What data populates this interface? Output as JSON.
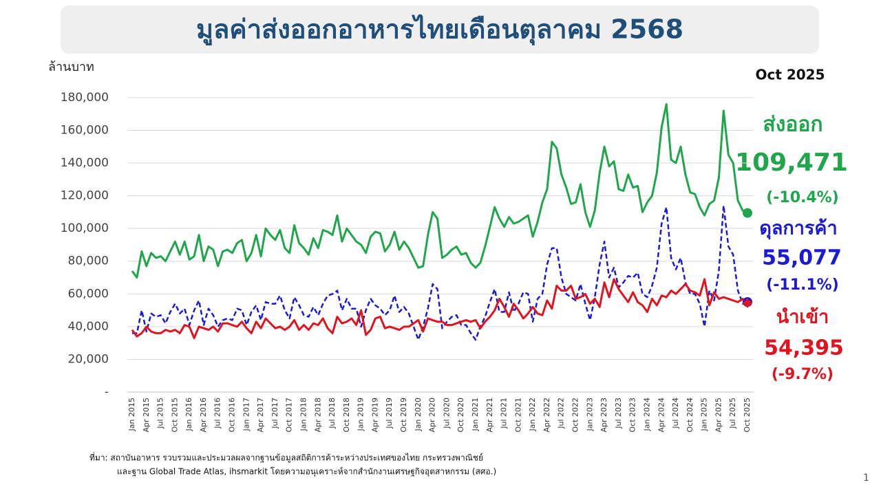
{
  "chart_data": {
    "type": "line",
    "title": "มูลค่าส่งออกอาหารไทยเดือนตุลาคม 2568",
    "y_unit": "ล้านบาท",
    "period_label": "Oct 2025",
    "source_line1": "ที่มา: สถาบันอาหาร รวบรวมและประมวลผลจากฐานข้อมูลสถิติการค้าระหว่างประเทศของไทย กระทรวงพาณิชย์",
    "source_line2": "และฐาน Global Trade Atlas, ihsmarkit โดยความอนุเคราะห์จากสำนักงานเศรษฐกิจอุตสาหกรรม (สศอ.)",
    "page_number": "1",
    "grid": true,
    "ylim": [
      0,
      185000
    ],
    "yticks": [
      {
        "value": 0,
        "label": "-"
      },
      {
        "value": 20000,
        "label": "20,000"
      },
      {
        "value": 40000,
        "label": "40,000"
      },
      {
        "value": 60000,
        "label": "60,000"
      },
      {
        "value": 80000,
        "label": "80,000"
      },
      {
        "value": 100000,
        "label": "100,000"
      },
      {
        "value": 120000,
        "label": "120,000"
      },
      {
        "value": 140000,
        "label": "140,000"
      },
      {
        "value": 160000,
        "label": "160,000"
      },
      {
        "value": 180000,
        "label": "180,000"
      }
    ],
    "categories": [
      "Jan 2015",
      null,
      null,
      "Apr 2015",
      null,
      null,
      "Jul 2015",
      null,
      null,
      "Oct 2015",
      null,
      null,
      "Jan 2016",
      null,
      null,
      "Apr 2016",
      null,
      null,
      "Jul 2016",
      null,
      null,
      "Oct 2016",
      null,
      null,
      "Jan 2017",
      null,
      null,
      "Apr 2017",
      null,
      null,
      "Jul 2017",
      null,
      null,
      "Oct 2017",
      null,
      null,
      "Jan 2018",
      null,
      null,
      "Apr 2018",
      null,
      null,
      "Jul 2018",
      null,
      null,
      "Oct 2018",
      null,
      null,
      "Jan 2019",
      null,
      null,
      "Apr 2019",
      null,
      null,
      "Jul 2019",
      null,
      null,
      "Oct 2019",
      null,
      null,
      "Jan 2020",
      null,
      null,
      "Apr 2020",
      null,
      null,
      "Jul 2020",
      null,
      null,
      "Oct 2020",
      null,
      null,
      "Jan 2021",
      null,
      null,
      "Apr 2021",
      null,
      null,
      "Jul 2021",
      null,
      null,
      "Oct 2021",
      null,
      null,
      "Jan 2022",
      null,
      null,
      "Apr 2022",
      null,
      null,
      "Jul 2022",
      null,
      null,
      "Oct 2022",
      null,
      null,
      "Jan 2023",
      null,
      null,
      "Apr 2023",
      null,
      null,
      "Jul 2023",
      null,
      null,
      "Oct 2023",
      null,
      null,
      "Jan 2024",
      null,
      null,
      "Apr 2024",
      null,
      null,
      "Jul 2024",
      null,
      null,
      "Oct 2024",
      null,
      null,
      "Jan 2025",
      null,
      null,
      "Apr 2025",
      null,
      null,
      "Jul 2025",
      null,
      null,
      "Oct 2025"
    ],
    "series": [
      {
        "name": "ส่งออก",
        "color": "#1fa64b",
        "dash": false,
        "marker": "circle",
        "latest_label": "109,471",
        "change": "(-10.4%)",
        "values": [
          74000,
          70000,
          86000,
          77000,
          85000,
          82000,
          83000,
          80000,
          86000,
          92000,
          84000,
          92000,
          81000,
          83000,
          96000,
          80000,
          89000,
          87000,
          77000,
          86000,
          87000,
          85000,
          91000,
          93000,
          80000,
          85000,
          96000,
          83000,
          100000,
          96000,
          93000,
          99000,
          88000,
          85000,
          102000,
          91000,
          88000,
          84000,
          94000,
          88000,
          99000,
          98000,
          96000,
          108000,
          92000,
          100000,
          96000,
          92000,
          90000,
          85000,
          95000,
          98000,
          97000,
          86000,
          90000,
          98000,
          87000,
          92000,
          88000,
          82000,
          76000,
          77000,
          96000,
          110000,
          106000,
          82000,
          84000,
          87000,
          89000,
          84000,
          85000,
          79000,
          76000,
          79000,
          89000,
          101000,
          113000,
          106000,
          101000,
          107000,
          103000,
          104000,
          106000,
          108000,
          95000,
          104000,
          116000,
          124000,
          153000,
          149000,
          133000,
          125000,
          115000,
          116000,
          127000,
          110000,
          101000,
          111000,
          134000,
          150000,
          138000,
          141000,
          124000,
          123000,
          133000,
          125000,
          126000,
          110000,
          116000,
          120000,
          134000,
          162000,
          176000,
          142000,
          140000,
          150000,
          133000,
          122000,
          121000,
          113000,
          108000,
          115000,
          117000,
          131000,
          172000,
          145000,
          140000,
          117000,
          111000,
          109471
        ]
      },
      {
        "name": "ดุลการค้า",
        "color": "#1a1ad6",
        "dash": true,
        "marker": "circle",
        "latest_label": "55,077",
        "change": "(-11.1%)",
        "values": [
          36000,
          36000,
          50000,
          37000,
          48000,
          46000,
          47000,
          42000,
          49000,
          54000,
          48000,
          51000,
          41000,
          50000,
          56000,
          41000,
          51000,
          47000,
          40000,
          44000,
          45000,
          44000,
          51000,
          50000,
          41000,
          49000,
          53000,
          44000,
          55000,
          54000,
          54000,
          59000,
          50000,
          45000,
          58000,
          53000,
          47000,
          46000,
          52000,
          47000,
          54000,
          59000,
          60000,
          62000,
          50000,
          57000,
          51000,
          51000,
          40000,
          50000,
          57000,
          53000,
          51000,
          47000,
          50000,
          59000,
          49000,
          52000,
          48000,
          40000,
          32000,
          40000,
          51000,
          66000,
          63000,
          39000,
          43000,
          46000,
          47000,
          41000,
          41000,
          36000,
          32000,
          40000,
          46000,
          55000,
          63000,
          49000,
          49000,
          61000,
          49000,
          54000,
          61000,
          60000,
          43000,
          57000,
          60000,
          78000,
          88000,
          88000,
          70000,
          60000,
          58000,
          56000,
          66000,
          54000,
          44000,
          58000,
          78000,
          92000,
          70000,
          76000,
          64000,
          67000,
          71000,
          70000,
          73000,
          60000,
          58000,
          65000,
          76000,
          103000,
          113000,
          82000,
          75000,
          82000,
          67000,
          60000,
          60000,
          54000,
          40000,
          62000,
          56000,
          74000,
          114000,
          89000,
          84000,
          62000,
          54000,
          55077
        ]
      },
      {
        "name": "นำเข้า",
        "color": "#e0141e",
        "dash": false,
        "marker": "diamond",
        "latest_label": "54,395",
        "change": "(-9.7%)",
        "values": [
          38000,
          34000,
          36000,
          40000,
          37000,
          36000,
          36000,
          38000,
          37000,
          38000,
          36000,
          41000,
          40000,
          33000,
          40000,
          39000,
          38000,
          40000,
          37000,
          42000,
          42000,
          41000,
          40000,
          43000,
          39000,
          36000,
          43000,
          39000,
          45000,
          42000,
          39000,
          40000,
          38000,
          40000,
          44000,
          38000,
          41000,
          38000,
          42000,
          41000,
          45000,
          39000,
          36000,
          46000,
          42000,
          43000,
          45000,
          41000,
          50000,
          35000,
          38000,
          45000,
          46000,
          39000,
          40000,
          39000,
          38000,
          40000,
          40000,
          42000,
          44000,
          37000,
          45000,
          44000,
          43000,
          43000,
          41000,
          41000,
          42000,
          43000,
          44000,
          43000,
          44000,
          39000,
          43000,
          46000,
          50000,
          57000,
          52000,
          46000,
          54000,
          50000,
          45000,
          48000,
          52000,
          48000,
          47000,
          56000,
          51000,
          65000,
          62000,
          62000,
          65000,
          57000,
          58000,
          60000,
          54000,
          57000,
          52000,
          67000,
          58000,
          69000,
          63000,
          59000,
          55000,
          61000,
          55000,
          53000,
          49000,
          57000,
          53000,
          59000,
          58000,
          62000,
          60000,
          63000,
          66000,
          62000,
          61000,
          59000,
          69000,
          53000,
          61000,
          57000,
          58000,
          57000,
          56000,
          55000,
          57000,
          54395
        ]
      }
    ]
  }
}
